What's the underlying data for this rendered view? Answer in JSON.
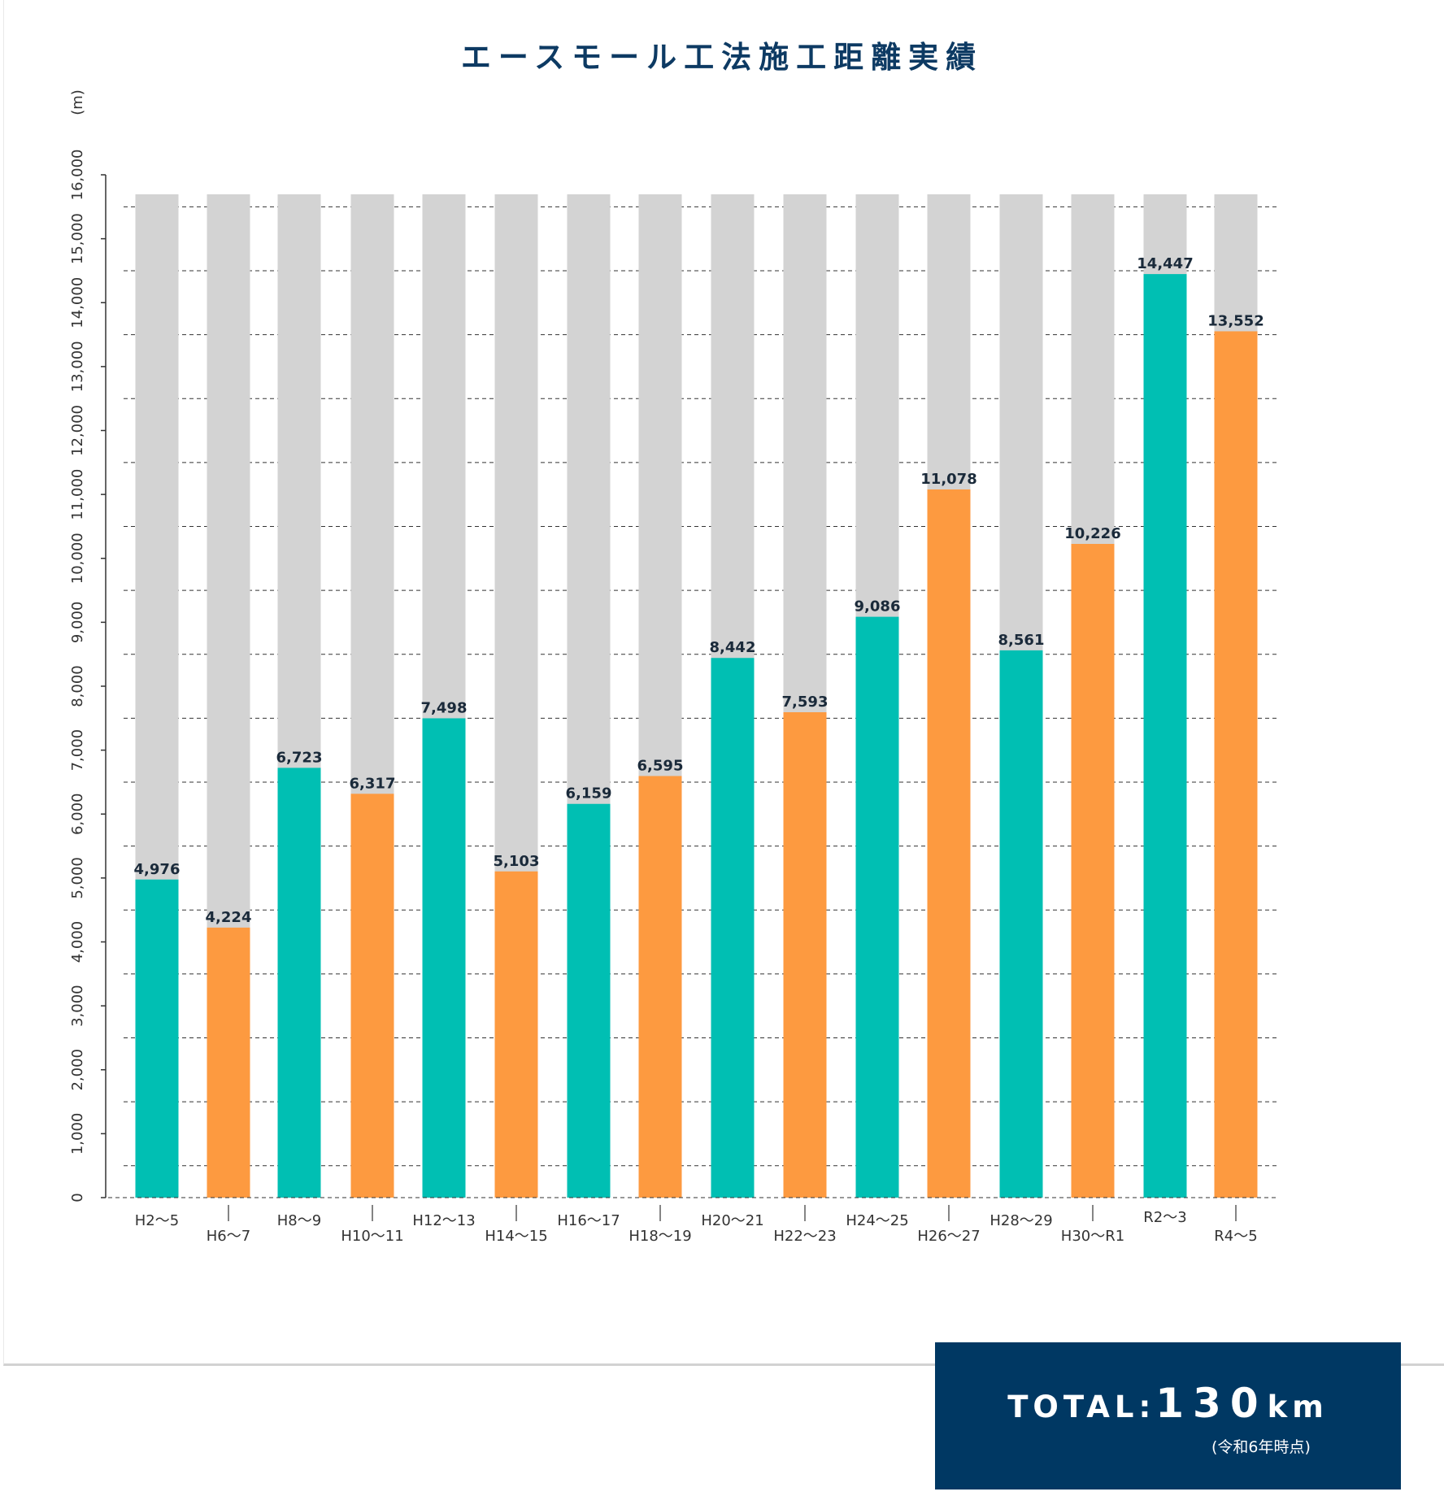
{
  "colors": {
    "teal": "#00bfb3",
    "orange": "#fd9a40",
    "gray": "#d3d3d3",
    "title": "#0d3a63",
    "axis": "#333333",
    "total_bg": "#003863"
  },
  "total": {
    "label": "TOTAL:",
    "value": "130",
    "unit": "km",
    "note": "(令和6年時点)"
  },
  "chart_data": {
    "type": "bar",
    "title": "エースモール工法施工距離実績",
    "ylabel": "(m)",
    "ylim": [
      0,
      16000
    ],
    "y_ticks": [
      "0",
      "1,000",
      "2,000",
      "3,000",
      "4,000",
      "5,000",
      "6,000",
      "7,000",
      "8,000",
      "9,000",
      "10,000",
      "11,000",
      "12,000",
      "13,000",
      "14,000",
      "15,000",
      "16,000"
    ],
    "grid": "dashed horizontal",
    "categories": [
      "H2〜5",
      "H6〜7",
      "H8〜9",
      "H10〜11",
      "H12〜13",
      "H14〜15",
      "H16〜17",
      "H18〜19",
      "H20〜21",
      "H22〜23",
      "H24〜25",
      "H26〜27",
      "H28〜29",
      "H30〜R1",
      "R2〜3",
      "R4〜5"
    ],
    "values": [
      4976,
      4224,
      6723,
      6317,
      7498,
      5103,
      6159,
      6595,
      8442,
      7593,
      9086,
      11078,
      8561,
      10226,
      14447,
      13552
    ],
    "value_labels": [
      "4,976",
      "4,224",
      "6,723",
      "6,317",
      "7,498",
      "5,103",
      "6,159",
      "6,595",
      "8,442",
      "7,593",
      "9,086",
      "11,078",
      "8,561",
      "10,226",
      "14,447",
      "13,552"
    ],
    "bar_colors": [
      "teal",
      "orange",
      "teal",
      "orange",
      "teal",
      "orange",
      "teal",
      "orange",
      "teal",
      "orange",
      "teal",
      "orange",
      "teal",
      "orange",
      "teal",
      "orange"
    ],
    "background_bars": true
  }
}
